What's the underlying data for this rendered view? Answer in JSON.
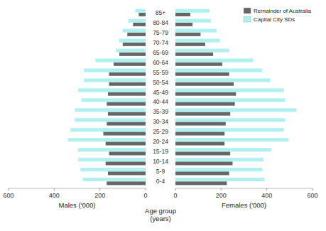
{
  "chart_data": [
    {
      "type": "bar",
      "orientation": "horizontal",
      "x_label": "Males ('000)",
      "categories": [
        "0-4",
        "5-9",
        "10-14",
        "15-19",
        "20-24",
        "25-29",
        "30-34",
        "35-39",
        "40-44",
        "45-49",
        "50-54",
        "55-59",
        "60-64",
        "65-69",
        "70-74",
        "75-79",
        "80-84",
        "85+"
      ],
      "series": [
        {
          "color": "#666666",
          "values": [
            170,
            165,
            175,
            160,
            175,
            185,
            170,
            165,
            170,
            165,
            160,
            160,
            140,
            115,
            100,
            80,
            55,
            30
          ]
        },
        {
          "color": "#b0f0f0",
          "values": [
            275,
            285,
            295,
            295,
            340,
            330,
            310,
            310,
            280,
            295,
            270,
            270,
            220,
            130,
            115,
            100,
            75,
            45
          ]
        }
      ],
      "xlim": [
        600,
        0
      ],
      "xticks": [
        600,
        400,
        200,
        0
      ],
      "tick_labels": "x",
      "grid": false
    },
    {
      "type": "bar",
      "orientation": "horizontal",
      "x_label": "Females ('000)",
      "y_label": "Age group\n(years)",
      "categories": [
        "0-4",
        "5-9",
        "10-14",
        "15-19",
        "20-24",
        "25-29",
        "30-34",
        "35-39",
        "40-44",
        "45-49",
        "50-54",
        "55-59",
        "60-64",
        "65-69",
        "70-74",
        "75-79",
        "80-84",
        "85+"
      ],
      "series": [
        {
          "name": "Remainder of Australia",
          "color": "#666666",
          "values": [
            225,
            235,
            250,
            240,
            215,
            215,
            220,
            240,
            260,
            265,
            255,
            235,
            205,
            165,
            130,
            110,
            75,
            65
          ]
        },
        {
          "name": "Capital City SDs",
          "color": "#b0f0f0",
          "values": [
            390,
            380,
            385,
            420,
            495,
            475,
            480,
            530,
            480,
            475,
            415,
            380,
            340,
            235,
            195,
            180,
            155,
            150
          ]
        }
      ],
      "xlim": [
        0,
        600
      ],
      "xticks": [
        0,
        200,
        400,
        600
      ],
      "tick_labels": true,
      "legend": "upper right",
      "grid": false
    }
  ]
}
